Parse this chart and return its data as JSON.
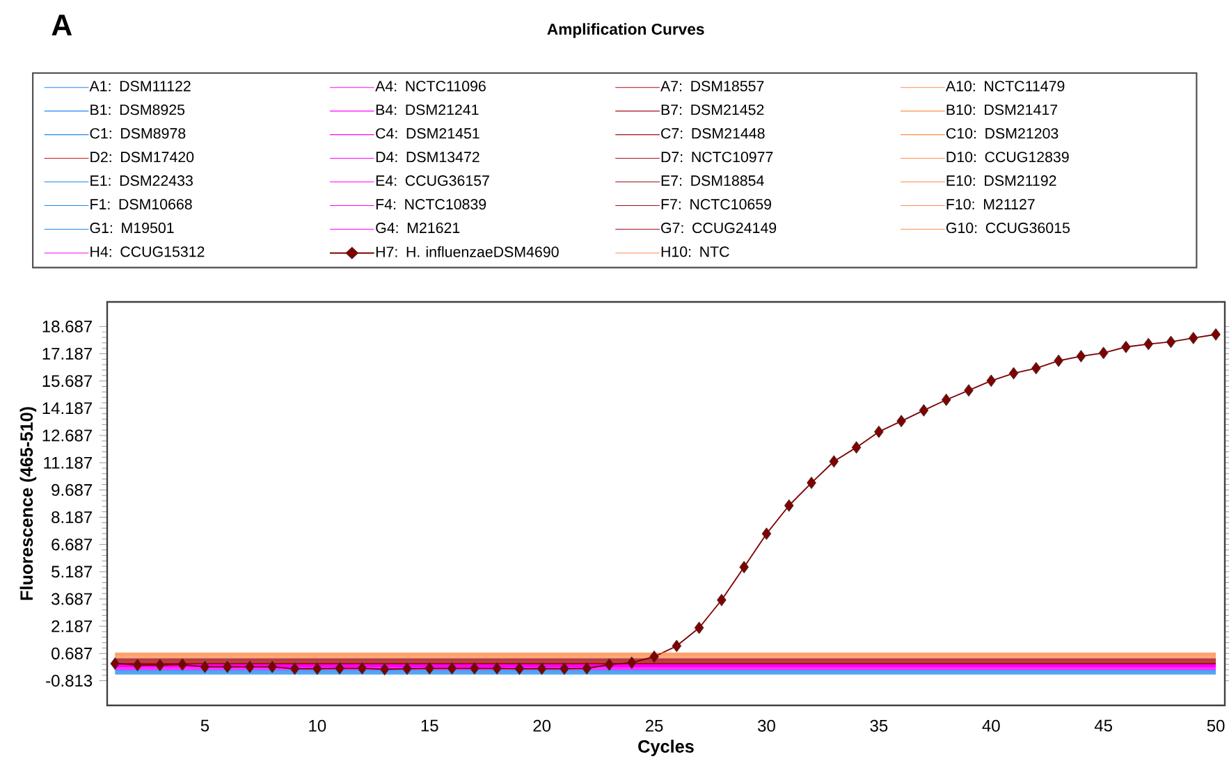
{
  "chart_data": {
    "type": "line",
    "title": "Amplification Curves",
    "xlabel": "Cycles",
    "ylabel": "Fluorescence (465-510)",
    "annotations": [
      "A"
    ],
    "xlim": [
      0.65,
      50.4
    ],
    "ylim": [
      -2.17,
      20.04
    ],
    "xticks": [
      5,
      10,
      15,
      20,
      25,
      30,
      35,
      40,
      45,
      50
    ],
    "yticks": [
      -0.813,
      0.687,
      2.187,
      3.687,
      5.187,
      6.687,
      8.187,
      9.687,
      11.187,
      12.687,
      14.187,
      15.687,
      17.187,
      18.687
    ],
    "legend": "top",
    "series": [
      {
        "name": "A1: DSM11122",
        "color": "#1e88f0",
        "x": [
          1,
          50
        ],
        "values": [
          -0.45,
          -0.45
        ]
      },
      {
        "name": "A4: NCTC11096",
        "color": "#ff00ff",
        "x": [
          1,
          50
        ],
        "values": [
          -0.21,
          -0.21
        ]
      },
      {
        "name": "A7: DSM18557",
        "color": "#a01018",
        "x": [
          1,
          50
        ],
        "values": [
          0.11,
          0.11
        ]
      },
      {
        "name": "A10: NCTC11479",
        "color": "#ff8c4c",
        "x": [
          1,
          50
        ],
        "values": [
          0.43,
          0.43
        ]
      },
      {
        "name": "B1: DSM8925",
        "color": "#1e88f0",
        "x": [
          1,
          50
        ],
        "values": [
          -0.41,
          -0.41
        ]
      },
      {
        "name": "B4: DSM21241",
        "color": "#ff00ff",
        "x": [
          1,
          50
        ],
        "values": [
          -0.17,
          -0.17
        ]
      },
      {
        "name": "B7: DSM21452",
        "color": "#a01018",
        "x": [
          1,
          50
        ],
        "values": [
          0.15,
          0.15
        ]
      },
      {
        "name": "B10: DSM21417",
        "color": "#ff8c4c",
        "x": [
          1,
          50
        ],
        "values": [
          0.47,
          0.47
        ]
      },
      {
        "name": "C1: DSM8978",
        "color": "#1e88f0",
        "x": [
          1,
          50
        ],
        "values": [
          -0.37,
          -0.37
        ]
      },
      {
        "name": "C4: DSM21451",
        "color": "#ff00ff",
        "x": [
          1,
          50
        ],
        "values": [
          -0.13,
          -0.13
        ]
      },
      {
        "name": "C7: DSM21448",
        "color": "#a01018",
        "x": [
          1,
          50
        ],
        "values": [
          0.19,
          0.19
        ]
      },
      {
        "name": "C10: DSM21203",
        "color": "#ff8c4c",
        "x": [
          1,
          50
        ],
        "values": [
          0.51,
          0.51
        ]
      },
      {
        "name": "D2: DSM17420",
        "color": "#d01010",
        "x": [
          1,
          50
        ],
        "values": [
          0.23,
          0.23
        ]
      },
      {
        "name": "D4: DSM13472",
        "color": "#ff00ff",
        "x": [
          1,
          50
        ],
        "values": [
          -0.09,
          -0.09
        ]
      },
      {
        "name": "D7: NCTC10977",
        "color": "#a01018",
        "x": [
          1,
          50
        ],
        "values": [
          0.27,
          0.27
        ]
      },
      {
        "name": "D10: CCUG12839",
        "color": "#ff8c4c",
        "x": [
          1,
          50
        ],
        "values": [
          0.55,
          0.55
        ]
      },
      {
        "name": "E1: DSM22433",
        "color": "#1e88f0",
        "x": [
          1,
          50
        ],
        "values": [
          -0.33,
          -0.33
        ]
      },
      {
        "name": "E4: CCUG36157",
        "color": "#ff00ff",
        "x": [
          1,
          50
        ],
        "values": [
          -0.05,
          -0.05
        ]
      },
      {
        "name": "E7: DSM18854",
        "color": "#a01018",
        "x": [
          1,
          50
        ],
        "values": [
          0.31,
          0.31
        ]
      },
      {
        "name": "E10: DSM21192",
        "color": "#ff8c4c",
        "x": [
          1,
          50
        ],
        "values": [
          0.59,
          0.59
        ]
      },
      {
        "name": "F1: DSM10668",
        "color": "#1e88f0",
        "x": [
          1,
          50
        ],
        "values": [
          -0.29,
          -0.29
        ]
      },
      {
        "name": "F4: NCTC10839",
        "color": "#ff00ff",
        "x": [
          1,
          50
        ],
        "values": [
          -0.01,
          -0.01
        ]
      },
      {
        "name": "F7: NCTC10659",
        "color": "#a01018",
        "x": [
          1,
          50
        ],
        "values": [
          0.35,
          0.35
        ]
      },
      {
        "name": "F10: M21127",
        "color": "#ff8c4c",
        "x": [
          1,
          50
        ],
        "values": [
          0.63,
          0.63
        ]
      },
      {
        "name": "G1: M19501",
        "color": "#1e88f0",
        "x": [
          1,
          50
        ],
        "values": [
          -0.25,
          -0.25
        ]
      },
      {
        "name": "G4: M21621",
        "color": "#ff00ff",
        "x": [
          1,
          50
        ],
        "values": [
          0.03,
          0.03
        ]
      },
      {
        "name": "G7: CCUG24149",
        "color": "#a01018",
        "x": [
          1,
          50
        ],
        "values": [
          0.39,
          0.39
        ]
      },
      {
        "name": "G10: CCUG36015",
        "color": "#ff8c4c",
        "x": [
          1,
          50
        ],
        "values": [
          0.67,
          0.67
        ]
      },
      {
        "name": "H4: CCUG15312",
        "color": "#ff00ff",
        "x": [
          1,
          50
        ],
        "values": [
          0.07,
          0.07
        ]
      },
      {
        "name": "H7: H. influenzaeDSM4690",
        "color": "#800000",
        "marker": "diamond",
        "x": [
          1,
          2,
          3,
          4,
          5,
          6,
          7,
          8,
          9,
          10,
          11,
          12,
          13,
          14,
          15,
          16,
          17,
          18,
          19,
          20,
          21,
          22,
          23,
          24,
          25,
          26,
          27,
          28,
          29,
          30,
          31,
          32,
          33,
          34,
          35,
          36,
          37,
          38,
          39,
          40,
          41,
          42,
          43,
          44,
          45,
          46,
          47,
          48,
          49,
          50
        ],
        "values": [
          0.13,
          0.05,
          0.05,
          0.08,
          -0.05,
          -0.05,
          -0.05,
          -0.05,
          -0.15,
          -0.15,
          -0.13,
          -0.13,
          -0.18,
          -0.15,
          -0.13,
          -0.13,
          -0.13,
          -0.13,
          -0.15,
          -0.15,
          -0.15,
          -0.13,
          0.08,
          0.18,
          0.51,
          1.1,
          2.1,
          3.63,
          5.44,
          7.28,
          8.83,
          10.08,
          11.26,
          12.03,
          12.89,
          13.48,
          14.07,
          14.65,
          15.17,
          15.7,
          16.11,
          16.39,
          16.8,
          17.05,
          17.23,
          17.56,
          17.72,
          17.84,
          18.05,
          18.25
        ]
      },
      {
        "name": "H10: NTC",
        "color": "#ff8c4c",
        "x": [
          1,
          50
        ],
        "values": [
          0.71,
          0.71
        ]
      }
    ]
  }
}
